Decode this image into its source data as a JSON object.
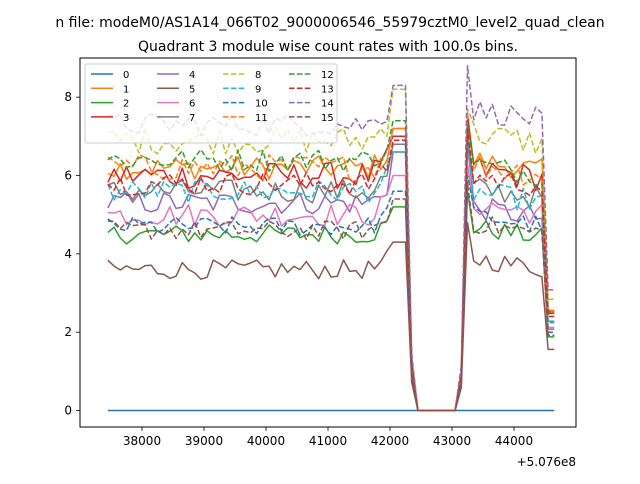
{
  "chart_data": {
    "type": "line",
    "suptitle": "n file: modeM0/AS1A14_066T02_9000006546_55979cztM0_level2_quad_clean",
    "title": "Quadrant 3 module wise count rates with 100.0s bins.",
    "xlabel": "",
    "ylabel": "",
    "x_offset_label": "+5.076e8",
    "xlim": [
      37000,
      45000
    ],
    "ylim": [
      -0.42,
      9.0
    ],
    "xticks": [
      38000,
      39000,
      40000,
      41000,
      42000,
      43000,
      44000
    ],
    "yticks": [
      0,
      2,
      4,
      6,
      8
    ],
    "grid": false,
    "legend_position": "top-left",
    "legend_columns": 4,
    "x_start": 37450,
    "x_step": 100,
    "x_end": 44650,
    "series": [
      {
        "name": "0",
        "color": "#1f77b4",
        "style": "solid",
        "level_before": 0.0,
        "level_after": 0.0,
        "peak_before": 0.0,
        "peak_after": 0.0,
        "noise": 0.0
      },
      {
        "name": "1",
        "color": "#ff7f0e",
        "style": "solid",
        "level_before": 6.2,
        "level_after": 6.4,
        "peak_before": 7.2,
        "peak_after": 7.6,
        "noise": 0.3
      },
      {
        "name": "2",
        "color": "#2ca02c",
        "style": "solid",
        "level_before": 4.5,
        "level_after": 4.7,
        "peak_before": 5.2,
        "peak_after": 5.6,
        "noise": 0.25
      },
      {
        "name": "3",
        "color": "#d62728",
        "style": "solid",
        "level_before": 6.0,
        "level_after": 6.2,
        "peak_before": 7.0,
        "peak_after": 7.5,
        "noise": 0.35
      },
      {
        "name": "4",
        "color": "#9467bd",
        "style": "solid",
        "level_before": 5.3,
        "level_after": 5.2,
        "peak_before": 6.6,
        "peak_after": 6.8,
        "noise": 0.3
      },
      {
        "name": "5",
        "color": "#8c564b",
        "style": "solid",
        "level_before": 3.6,
        "level_after": 3.9,
        "peak_before": 4.3,
        "peak_after": 4.8,
        "noise": 0.25
      },
      {
        "name": "6",
        "color": "#e377c2",
        "style": "solid",
        "level_before": 5.0,
        "level_after": 5.3,
        "peak_before": 6.0,
        "peak_after": 6.3,
        "noise": 0.3
      },
      {
        "name": "7",
        "color": "#7f7f7f",
        "style": "solid",
        "level_before": 5.6,
        "level_after": 5.7,
        "peak_before": 6.8,
        "peak_after": 7.0,
        "noise": 0.3
      },
      {
        "name": "8",
        "color": "#bcbd22",
        "style": "dashed",
        "level_before": 6.9,
        "level_after": 7.1,
        "peak_before": 8.2,
        "peak_after": 7.7,
        "noise": 0.35
      },
      {
        "name": "9",
        "color": "#17becf",
        "style": "dashed",
        "level_before": 5.6,
        "level_after": 5.6,
        "peak_before": 6.6,
        "peak_after": 6.8,
        "noise": 0.3
      },
      {
        "name": "10",
        "color": "#1f77b4",
        "style": "dashed",
        "level_before": 4.7,
        "level_after": 5.0,
        "peak_before": 5.6,
        "peak_after": 6.0,
        "noise": 0.25
      },
      {
        "name": "11",
        "color": "#ff7f0e",
        "style": "dashed",
        "level_before": 6.2,
        "level_after": 6.3,
        "peak_before": 7.2,
        "peak_after": 7.3,
        "noise": 0.35
      },
      {
        "name": "12",
        "color": "#2ca02c",
        "style": "dashed",
        "level_before": 6.4,
        "level_after": 6.3,
        "peak_before": 7.4,
        "peak_after": 7.3,
        "noise": 0.3
      },
      {
        "name": "13",
        "color": "#d62728",
        "style": "dashed",
        "level_before": 5.8,
        "level_after": 6.0,
        "peak_before": 6.9,
        "peak_after": 7.2,
        "noise": 0.3
      },
      {
        "name": "14",
        "color": "#9467bd",
        "style": "dashed",
        "level_before": 7.3,
        "level_after": 7.7,
        "peak_before": 8.3,
        "peak_after": 8.8,
        "noise": 0.3
      },
      {
        "name": "15",
        "color": "#8c564b",
        "style": "dashed",
        "level_before": 4.6,
        "level_after": 4.8,
        "peak_before": 5.4,
        "peak_after": 5.8,
        "noise": 0.25
      }
    ]
  }
}
